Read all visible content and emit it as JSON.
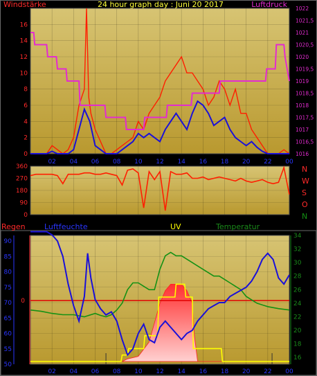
{
  "header": {
    "left_label": "Windstärke",
    "title": "24 hour graph day : Juni 20 2017",
    "right_label": "Luftdruck"
  },
  "colors": {
    "background": "#000000",
    "plot_top": "#d7c473",
    "plot_bottom": "#b9992f",
    "wind": "#ff1e00",
    "wind_avg": "#1a10d8",
    "pressure": "#e32bd0",
    "direction": "#ff1e00",
    "humidity": "#1a10d8",
    "temperature": "#149114",
    "uv": "#ffff00",
    "rain_line": "#e00000",
    "solar": "#ff2020",
    "axis_red": "#ff2a2a",
    "axis_magenta": "#e32bd0",
    "axis_blue": "#2a36ff",
    "axis_green": "#1a8a1a"
  },
  "x_ticks": [
    "02",
    "04",
    "06",
    "08",
    "10",
    "12",
    "14",
    "16",
    "18",
    "20",
    "22",
    "00"
  ],
  "chart_data": [
    {
      "type": "line",
      "name": "wind-pressure",
      "title": "24 hour graph day : Juni 20 2017",
      "ylabel": "Windstärke",
      "ylabel2": "Luftdruck",
      "ylim": [
        0,
        18
      ],
      "ylim2": [
        1016,
        1022
      ],
      "yticks": [
        "0",
        "2",
        "4",
        "6",
        "8",
        "10",
        "12",
        "14",
        "16"
      ],
      "yticks2": [
        "1016",
        "1016,5",
        "1017",
        "1017,5",
        "1018",
        "1018,5",
        "1019",
        "1019,5",
        "1020",
        "1020,5",
        "1021",
        "1021,5",
        "1022"
      ],
      "series": [
        {
          "role": "gust",
          "x": [
            0,
            0.5,
            1,
            1.5,
            2,
            2.5,
            3,
            3.5,
            4,
            4.5,
            5,
            5.2,
            5.4,
            5.6,
            6,
            6.5,
            7,
            7.5,
            8,
            8.5,
            9,
            9.5,
            10,
            10.5,
            11,
            11.5,
            12,
            12.5,
            13,
            13.5,
            14,
            14.5,
            15,
            15.5,
            16,
            16.5,
            17,
            17.5,
            18,
            18.5,
            19,
            19.5,
            20,
            20.5,
            21,
            21.5,
            22,
            22.5,
            23,
            23.5,
            24
          ],
          "values": [
            0,
            0,
            0,
            0,
            1,
            0.5,
            0,
            0.5,
            2,
            6,
            8,
            18,
            7,
            5,
            3,
            1.5,
            0,
            0,
            0.5,
            1,
            1.5,
            2,
            4,
            3,
            5,
            6,
            7,
            9,
            10,
            11,
            12,
            10,
            10,
            9,
            8,
            6,
            7,
            9,
            8,
            6,
            8,
            5,
            5,
            3,
            2,
            1,
            0,
            0,
            0,
            0.5,
            0
          ]
        },
        {
          "role": "average",
          "x": [
            0,
            0.5,
            1,
            1.5,
            2,
            2.5,
            3,
            3.5,
            4,
            4.5,
            5,
            5.5,
            6,
            6.5,
            7,
            7.5,
            8,
            8.5,
            9,
            9.5,
            10,
            10.5,
            11,
            11.5,
            12,
            12.5,
            13,
            13.5,
            14,
            14.5,
            15,
            15.5,
            16,
            16.5,
            17,
            17.5,
            18,
            18.5,
            19,
            19.5,
            20,
            20.5,
            21,
            21.5,
            22,
            22.5,
            23,
            23.5,
            24
          ],
          "values": [
            0,
            0,
            0,
            0,
            0.3,
            0,
            0,
            0,
            0.5,
            3,
            5.5,
            4,
            1,
            0.5,
            0,
            0,
            0,
            0.5,
            1,
            1.5,
            2.5,
            2,
            2.5,
            2,
            1.5,
            3,
            4,
            5,
            4,
            3,
            5,
            6.5,
            6,
            5,
            3.5,
            4,
            4.5,
            3,
            2,
            1.5,
            1,
            1.5,
            0.8,
            0.3,
            0,
            0,
            0,
            0,
            0
          ]
        },
        {
          "role": "pressure",
          "axis": "right",
          "x": [
            0,
            0.3,
            0.4,
            1.5,
            1.6,
            2.4,
            2.5,
            3.3,
            3.4,
            4.5,
            4.6,
            5.5,
            5.6,
            6.9,
            7,
            8.8,
            8.9,
            10.5,
            10.6,
            12.6,
            12.7,
            14.9,
            15,
            17.5,
            17.6,
            21.8,
            21.9,
            22.7,
            22.8,
            23.5,
            23.6,
            24
          ],
          "values": [
            1021,
            1021,
            1020.5,
            1020.5,
            1020,
            1020,
            1019.5,
            1019.5,
            1019,
            1019,
            1018,
            1018,
            1018,
            1018,
            1017.5,
            1017.5,
            1017,
            1017,
            1017.5,
            1017.5,
            1018,
            1018,
            1018.5,
            1018.5,
            1019,
            1019,
            1019.5,
            1019.5,
            1020.5,
            1020.5,
            1020,
            1019
          ]
        }
      ]
    },
    {
      "type": "line",
      "name": "wind-direction",
      "ylim": [
        0,
        360
      ],
      "yticks": [
        "0",
        "90",
        "180",
        "270",
        "360"
      ],
      "compass": [
        "N",
        "W",
        "S",
        "O",
        "N"
      ],
      "x": [
        0,
        0.5,
        1,
        1.5,
        2,
        2.5,
        3,
        3.5,
        4,
        4.5,
        5,
        5.5,
        6,
        6.5,
        7,
        7.5,
        8,
        8.5,
        9,
        9.5,
        10,
        10.5,
        11,
        11.5,
        12,
        12.5,
        13,
        13.5,
        14,
        14.5,
        15,
        15.5,
        16,
        16.5,
        17,
        17.5,
        18,
        18.5,
        19,
        19.5,
        20,
        20.5,
        21,
        21.5,
        22,
        22.5,
        23,
        23.5,
        24
      ],
      "values": [
        290,
        300,
        300,
        300,
        300,
        290,
        230,
        300,
        300,
        300,
        310,
        310,
        300,
        300,
        310,
        300,
        290,
        220,
        330,
        340,
        310,
        50,
        320,
        260,
        320,
        30,
        320,
        300,
        300,
        310,
        270,
        270,
        280,
        260,
        270,
        280,
        270,
        260,
        250,
        270,
        250,
        240,
        250,
        260,
        240,
        230,
        240,
        350,
        150
      ]
    },
    {
      "type": "line",
      "name": "weather",
      "labels": {
        "rain": "Regen",
        "humidity": "Luftfeuchte",
        "uv": "UV",
        "temperature": "Temperatur"
      },
      "ylim_humidity": [
        50,
        90
      ],
      "ylim_temperature": [
        15,
        34
      ],
      "yticks_humidity": [
        "50",
        "55",
        "60",
        "65",
        "70",
        "75",
        "80",
        "85",
        "90"
      ],
      "yticks_temperature": [
        "16",
        "18",
        "20",
        "22",
        "24",
        "26",
        "28",
        "30",
        "32",
        "34"
      ],
      "rain_axis_label": "0",
      "series": [
        {
          "role": "humidity",
          "x": [
            0,
            0.5,
            1,
            1.5,
            2,
            2.5,
            3,
            3.5,
            4,
            4.5,
            5,
            5.3,
            5.6,
            6,
            6.5,
            7,
            7.5,
            8,
            8.5,
            9,
            9.5,
            10,
            10.5,
            11,
            11.5,
            12,
            12.5,
            13,
            13.5,
            14,
            14.5,
            15,
            15.5,
            16,
            16.5,
            17,
            17.5,
            18,
            18.5,
            19,
            19.5,
            20,
            20.5,
            21,
            21.5,
            22,
            22.5,
            23,
            23.5,
            24
          ],
          "values": [
            93,
            93,
            93,
            93,
            92,
            90,
            85,
            76,
            69,
            64,
            72,
            86,
            78,
            71,
            68,
            66,
            67,
            64,
            58,
            53,
            55,
            60,
            63,
            58,
            57,
            62,
            64,
            62,
            60,
            58,
            60,
            61,
            64,
            66,
            68,
            69,
            70,
            70,
            72,
            73,
            74,
            75,
            77,
            80,
            84,
            86,
            84,
            78,
            76,
            79
          ]
        },
        {
          "role": "temperature",
          "x": [
            0,
            1,
            2,
            3,
            4,
            5,
            6,
            6.5,
            7,
            7.5,
            8,
            8.5,
            9,
            9.5,
            10,
            10.5,
            11,
            11.5,
            12,
            12.5,
            13,
            13.5,
            14,
            14.5,
            15,
            15.5,
            16,
            16.5,
            17,
            17.5,
            18,
            18.5,
            19,
            19.5,
            20,
            21,
            22,
            23,
            24
          ],
          "values": [
            23,
            22.8,
            22.5,
            22.3,
            22.3,
            22,
            22.5,
            22.2,
            22,
            22.3,
            23,
            24,
            26,
            27,
            27,
            26.5,
            26,
            26,
            29,
            31,
            31.5,
            31,
            31,
            30.5,
            30,
            29.5,
            29,
            28.5,
            28,
            28,
            27.5,
            27,
            26.5,
            26,
            25,
            24,
            23.5,
            23.2,
            23
          ]
        },
        {
          "role": "uv",
          "x": [
            0,
            8.4,
            8.5,
            9,
            9.1,
            10.5,
            10.6,
            11.8,
            11.9,
            13.4,
            13.5,
            14.3,
            14.4,
            15,
            15.1,
            17.7,
            17.8,
            24
          ],
          "values": [
            0,
            0,
            0.5,
            0.5,
            1,
            1,
            2,
            2,
            5,
            5,
            6,
            6,
            5,
            5,
            1,
            1,
            0,
            0
          ]
        },
        {
          "role": "solar",
          "x": [
            8.5,
            9,
            10,
            11,
            11.5,
            12,
            12.5,
            13,
            13.5,
            14,
            14.5,
            15,
            15.2,
            15.5,
            24
          ],
          "values": [
            0,
            0.2,
            0.4,
            1.5,
            3,
            4.5,
            5.5,
            6,
            6,
            6,
            5.5,
            4.5,
            2,
            0,
            0
          ]
        }
      ]
    }
  ]
}
